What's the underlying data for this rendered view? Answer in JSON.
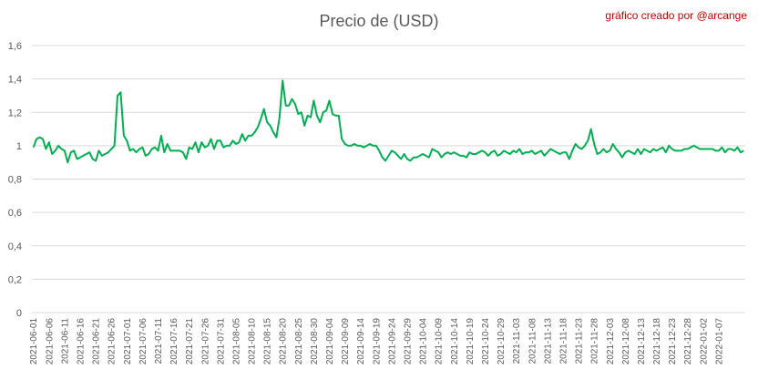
{
  "header": {
    "title": "Precio de (USD)",
    "credit": "gráfico creado por @arcange"
  },
  "chart_data": {
    "type": "line",
    "title": "Precio de (USD)",
    "xlabel": "",
    "ylabel": "",
    "ylim": [
      0,
      1.6
    ],
    "yticks": [
      "0",
      "0,2",
      "0,4",
      "0,6",
      "0,8",
      "1",
      "1,2",
      "1,4",
      "1,6"
    ],
    "grid": true,
    "legend": "none",
    "line_color": "#00b050",
    "start_date": "2021-06-01",
    "x_labels": [
      "2021-06-01",
      "2021-06-06",
      "2021-06-11",
      "2021-06-16",
      "2021-06-21",
      "2021-06-26",
      "2021-07-01",
      "2021-07-06",
      "2021-07-11",
      "2021-07-16",
      "2021-07-21",
      "2021-07-26",
      "2021-07-31",
      "2021-08-05",
      "2021-08-10",
      "2021-08-15",
      "2021-08-20",
      "2021-08-25",
      "2021-08-30",
      "2021-09-04",
      "2021-09-09",
      "2021-09-14",
      "2021-09-19",
      "2021-09-24",
      "2021-09-29",
      "2021-10-04",
      "2021-10-09",
      "2021-10-14",
      "2021-10-19",
      "2021-10-24",
      "2021-10-29",
      "2021-11-03",
      "2021-11-08",
      "2021-11-13",
      "2021-11-18",
      "2021-11-23",
      "2021-11-28",
      "2021-12-03",
      "2021-12-08",
      "2021-12-13",
      "2021-12-18",
      "2021-12-23",
      "2021-12-28",
      "2022-01-02",
      "2022-01-07"
    ],
    "series": [
      {
        "name": "",
        "values": [
          0.99,
          1.04,
          1.05,
          1.04,
          0.98,
          1.02,
          0.95,
          0.97,
          1.0,
          0.98,
          0.97,
          0.9,
          0.96,
          0.97,
          0.92,
          0.93,
          0.94,
          0.95,
          0.96,
          0.92,
          0.91,
          0.97,
          0.94,
          0.95,
          0.96,
          0.98,
          1.0,
          1.3,
          1.32,
          1.06,
          1.03,
          0.97,
          0.98,
          0.96,
          0.98,
          0.99,
          0.94,
          0.95,
          0.98,
          0.99,
          0.97,
          1.06,
          0.96,
          1.01,
          0.97,
          0.97,
          0.97,
          0.97,
          0.96,
          0.92,
          0.99,
          0.98,
          1.02,
          0.96,
          1.02,
          0.99,
          1.0,
          1.04,
          0.98,
          1.03,
          1.03,
          0.99,
          1.0,
          1.0,
          1.03,
          1.01,
          1.02,
          1.07,
          1.03,
          1.06,
          1.06,
          1.08,
          1.11,
          1.16,
          1.22,
          1.14,
          1.12,
          1.08,
          1.05,
          1.17,
          1.39,
          1.24,
          1.24,
          1.28,
          1.25,
          1.19,
          1.2,
          1.12,
          1.18,
          1.17,
          1.27,
          1.18,
          1.14,
          1.2,
          1.21,
          1.27,
          1.19,
          1.18,
          1.18,
          1.04,
          1.01,
          1.0,
          1.0,
          1.01,
          1.0,
          1.0,
          0.99,
          1.0,
          1.01,
          1.0,
          1.0,
          0.97,
          0.93,
          0.91,
          0.94,
          0.97,
          0.96,
          0.94,
          0.92,
          0.95,
          0.92,
          0.91,
          0.93,
          0.93,
          0.94,
          0.95,
          0.94,
          0.93,
          0.98,
          0.97,
          0.96,
          0.93,
          0.95,
          0.96,
          0.95,
          0.96,
          0.95,
          0.94,
          0.94,
          0.93,
          0.96,
          0.95,
          0.95,
          0.96,
          0.97,
          0.96,
          0.94,
          0.96,
          0.97,
          0.94,
          0.95,
          0.97,
          0.96,
          0.95,
          0.97,
          0.96,
          0.98,
          0.95,
          0.96,
          0.96,
          0.97,
          0.95,
          0.96,
          0.97,
          0.94,
          0.96,
          0.98,
          0.97,
          0.96,
          0.95,
          0.96,
          0.96,
          0.92,
          0.97,
          1.01,
          0.99,
          0.98,
          1.0,
          1.03,
          1.1,
          1.01,
          0.95,
          0.96,
          0.98,
          0.96,
          0.97,
          1.01,
          0.98,
          0.96,
          0.93,
          0.96,
          0.97,
          0.96,
          0.95,
          0.98,
          0.95,
          0.98,
          0.97,
          0.96,
          0.98,
          0.97,
          0.98,
          0.99,
          0.96,
          1.0,
          0.98,
          0.97,
          0.97,
          0.97,
          0.98,
          0.98,
          0.99,
          1.0,
          0.99,
          0.98,
          0.98,
          0.98,
          0.98,
          0.98,
          0.97,
          0.97,
          0.99,
          0.96,
          0.98,
          0.98,
          0.97,
          0.99,
          0.96,
          0.97
        ]
      }
    ]
  }
}
